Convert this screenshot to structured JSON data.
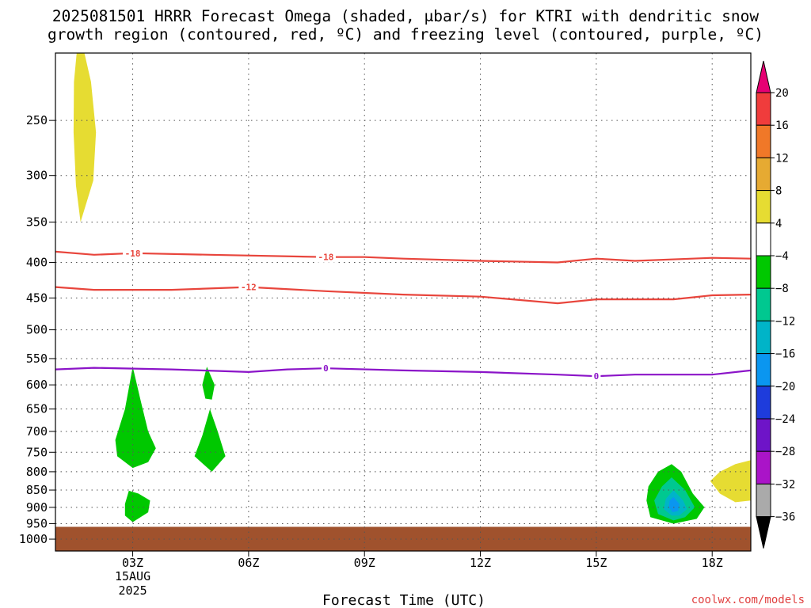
{
  "chart_data": {
    "type": "heatmap",
    "title_line1": "2025081501 HRRR Forecast Omega (shaded, μbar/s) for KTRI with dendritic snow",
    "title_line2": "growth region (contoured, red, ºC) and freezing level (contoured, purple, ºC)",
    "xlabel": "Forecast Time (UTC)",
    "credit": "coolwx.com/models",
    "x_range_hours": [
      1,
      19
    ],
    "x_ticks": [
      {
        "hour": 3,
        "label": "03Z",
        "sub1": "15AUG",
        "sub2": "2025"
      },
      {
        "hour": 6,
        "label": "06Z"
      },
      {
        "hour": 9,
        "label": "09Z"
      },
      {
        "hour": 12,
        "label": "12Z"
      },
      {
        "hour": 15,
        "label": "15Z"
      },
      {
        "hour": 18,
        "label": "18Z"
      }
    ],
    "y_range_hPa": [
      200,
      1040
    ],
    "y_ticks": [
      250,
      300,
      350,
      400,
      450,
      500,
      550,
      600,
      650,
      700,
      750,
      800,
      850,
      900,
      950,
      1000
    ],
    "grid": true,
    "ground_level_hPa": 960,
    "colors": {
      "ground": "#a0522d",
      "contour_red": "#e8453c",
      "contour_purple": "#8b14c8",
      "pos4": "#e6dc32",
      "neg4": "#00c800",
      "neg8": "#00c890",
      "neg12": "#00b4c8",
      "neg16": "#0a96f0"
    },
    "colorbar": {
      "labels": [
        "20",
        "16",
        "12",
        "8",
        "4",
        "−4",
        "−8",
        "−12",
        "−16",
        "−20",
        "−24",
        "−28",
        "−32",
        "−36"
      ],
      "colors_top_to_bottom": [
        "#e60073",
        "#f03c3c",
        "#f07828",
        "#e6aa32",
        "#e6dc32",
        "#ffffff",
        "#00c800",
        "#00c890",
        "#00b4c8",
        "#0a96f0",
        "#1e3cdc",
        "#6e14c8",
        "#aa14c8",
        "#aaaaaa",
        "#000000"
      ]
    },
    "contours": [
      {
        "value": -18,
        "label": "-18",
        "color": "red",
        "points": [
          [
            1.0,
            386
          ],
          [
            2.0,
            390
          ],
          [
            3.0,
            388
          ],
          [
            5.0,
            390
          ],
          [
            8.0,
            393
          ],
          [
            9.0,
            393
          ],
          [
            10.0,
            395
          ],
          [
            12.0,
            398
          ],
          [
            14.0,
            400
          ],
          [
            15.0,
            395
          ],
          [
            16.0,
            398
          ],
          [
            18.0,
            394
          ],
          [
            19.0,
            395
          ]
        ],
        "label_hours": [
          3.0,
          8.0
        ]
      },
      {
        "value": -12,
        "label": "-12",
        "color": "red",
        "points": [
          [
            1.0,
            434
          ],
          [
            2.0,
            438
          ],
          [
            3.0,
            438
          ],
          [
            4.0,
            438
          ],
          [
            6.0,
            434
          ],
          [
            8.0,
            440
          ],
          [
            10.0,
            445
          ],
          [
            12.0,
            448
          ],
          [
            14.0,
            458
          ],
          [
            15.0,
            452
          ],
          [
            17.0,
            452
          ],
          [
            18.0,
            446
          ],
          [
            19.0,
            445
          ]
        ],
        "label_hours": [
          6.0
        ]
      },
      {
        "value": 0,
        "label": "0",
        "color": "purple",
        "points": [
          [
            1.0,
            570
          ],
          [
            2.0,
            567
          ],
          [
            4.0,
            570
          ],
          [
            6.0,
            575
          ],
          [
            7.0,
            570
          ],
          [
            8.0,
            568
          ],
          [
            10.0,
            572
          ],
          [
            12.0,
            575
          ],
          [
            14.0,
            580
          ],
          [
            15.0,
            583
          ],
          [
            16.0,
            580
          ],
          [
            18.0,
            580
          ],
          [
            19.0,
            572
          ]
        ],
        "label_hours": [
          8.0,
          15.0
        ]
      }
    ],
    "shaded_regions": [
      {
        "name": "pos4-upper",
        "level": "pos4",
        "points": [
          [
            1.55,
            200
          ],
          [
            1.75,
            200
          ],
          [
            1.92,
            220
          ],
          [
            2.05,
            260
          ],
          [
            1.98,
            305
          ],
          [
            1.65,
            350
          ],
          [
            1.53,
            310
          ],
          [
            1.47,
            260
          ],
          [
            1.48,
            220
          ]
        ]
      },
      {
        "name": "neg4-a",
        "level": "neg4",
        "points": [
          [
            3.0,
            565
          ],
          [
            3.2,
            630
          ],
          [
            3.4,
            700
          ],
          [
            3.6,
            740
          ],
          [
            3.4,
            775
          ],
          [
            3.0,
            790
          ],
          [
            2.6,
            760
          ],
          [
            2.55,
            720
          ],
          [
            2.8,
            650
          ]
        ]
      },
      {
        "name": "neg4-b",
        "level": "neg4",
        "points": [
          [
            2.9,
            852
          ],
          [
            3.15,
            860
          ],
          [
            3.45,
            880
          ],
          [
            3.4,
            915
          ],
          [
            3.0,
            945
          ],
          [
            2.8,
            925
          ],
          [
            2.8,
            890
          ]
        ]
      },
      {
        "name": "neg4-c",
        "level": "neg4",
        "points": [
          [
            4.92,
            565
          ],
          [
            5.12,
            600
          ],
          [
            5.05,
            630
          ],
          [
            4.88,
            628
          ],
          [
            4.8,
            600
          ]
        ]
      },
      {
        "name": "neg4-d",
        "level": "neg4",
        "points": [
          [
            5.0,
            650
          ],
          [
            5.2,
            700
          ],
          [
            5.4,
            760
          ],
          [
            5.05,
            800
          ],
          [
            4.6,
            760
          ],
          [
            4.8,
            710
          ]
        ]
      },
      {
        "name": "neg4-e",
        "level": "neg4",
        "points": [
          [
            16.95,
            780
          ],
          [
            17.2,
            800
          ],
          [
            17.5,
            860
          ],
          [
            17.8,
            900
          ],
          [
            17.6,
            935
          ],
          [
            17.0,
            950
          ],
          [
            16.4,
            930
          ],
          [
            16.3,
            880
          ],
          [
            16.35,
            840
          ],
          [
            16.6,
            800
          ]
        ]
      },
      {
        "name": "neg8-e",
        "level": "neg8",
        "points": [
          [
            16.95,
            815
          ],
          [
            17.3,
            850
          ],
          [
            17.55,
            900
          ],
          [
            17.3,
            930
          ],
          [
            17.0,
            940
          ],
          [
            16.6,
            920
          ],
          [
            16.5,
            880
          ],
          [
            16.7,
            840
          ]
        ]
      },
      {
        "name": "neg12-e",
        "level": "neg12",
        "points": [
          [
            17.0,
            850
          ],
          [
            17.25,
            880
          ],
          [
            17.35,
            905
          ],
          [
            17.15,
            925
          ],
          [
            16.95,
            925
          ],
          [
            16.75,
            905
          ],
          [
            16.8,
            875
          ]
        ]
      },
      {
        "name": "neg16-e",
        "level": "neg16",
        "points": [
          [
            17.0,
            870
          ],
          [
            17.15,
            890
          ],
          [
            17.12,
            910
          ],
          [
            16.98,
            915
          ],
          [
            16.88,
            900
          ],
          [
            16.9,
            880
          ]
        ]
      },
      {
        "name": "pos4-right",
        "level": "pos4",
        "points": [
          [
            19.0,
            770
          ],
          [
            19.0,
            880
          ],
          [
            18.6,
            885
          ],
          [
            18.2,
            860
          ],
          [
            17.95,
            825
          ],
          [
            18.2,
            800
          ],
          [
            18.6,
            780
          ]
        ]
      }
    ]
  }
}
